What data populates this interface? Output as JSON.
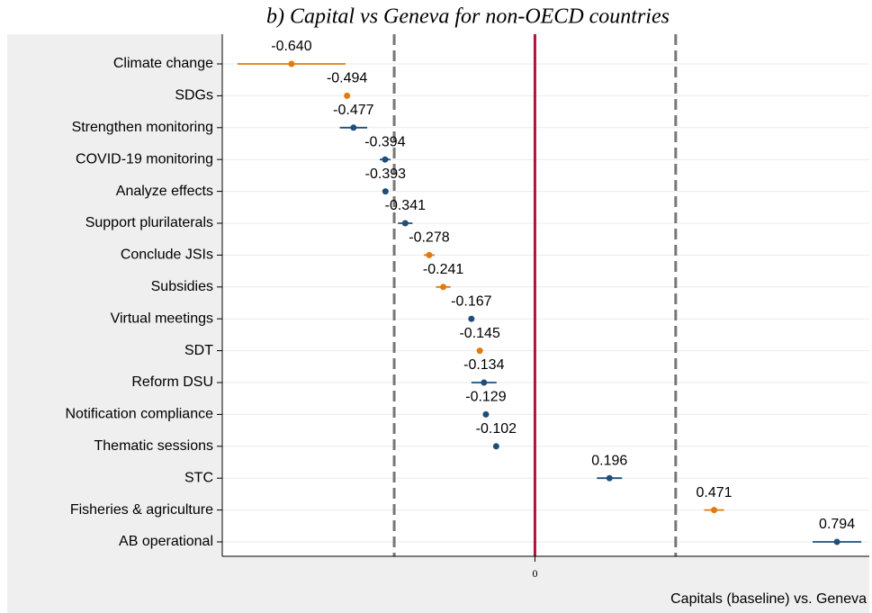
{
  "chart_data": {
    "type": "coefplot",
    "title": "b)   Capital vs Geneva for non-OECD countries",
    "x_label": "Capitals (baseline) vs. Geneva",
    "categories": [
      "Climate change",
      "SDGs",
      "Strengthen monitoring",
      "COVID-19 monitoring",
      "Analyze effects",
      "Support plurilaterals",
      "Conclude JSIs",
      "Subsidies",
      "Virtual meetings",
      "SDT",
      "Reform DSU",
      "Notification compliance",
      "Thematic sessions",
      "STC",
      "Fisheries & agriculture",
      "AB operational"
    ],
    "values": [
      -0.64,
      -0.494,
      -0.477,
      -0.394,
      -0.393,
      -0.341,
      -0.278,
      -0.241,
      -0.167,
      -0.145,
      -0.134,
      -0.129,
      -0.102,
      0.196,
      0.471,
      0.794
    ],
    "value_labels": [
      "-0.640",
      "-0.494",
      "-0.477",
      "-0.394",
      "-0.393",
      "-0.341",
      "-0.278",
      "-0.241",
      "-0.167",
      "-0.145",
      "-0.134",
      "-0.129",
      "-0.102",
      "0.196",
      "0.471",
      "0.794"
    ],
    "errors": [
      0.142,
      0.004,
      0.036,
      0.014,
      0.005,
      0.019,
      0.014,
      0.019,
      0.005,
      0.005,
      0.033,
      0.007,
      0.005,
      0.033,
      0.026,
      0.064
    ],
    "colors": [
      "#e07b10",
      "#e07b10",
      "#1f4e79",
      "#1f4e79",
      "#1f4e79",
      "#1f4e79",
      "#e07b10",
      "#e07b10",
      "#1f4e79",
      "#e07b10",
      "#1f4e79",
      "#1f4e79",
      "#1f4e79",
      "#1f4e79",
      "#e07b10",
      "#1f4e79"
    ],
    "xlim": [
      -0.822,
      0.879
    ],
    "xticks": [
      0
    ],
    "zero_line_color": "#b5123b",
    "reference_lines": [
      -0.37,
      0.37
    ],
    "grid": true
  }
}
